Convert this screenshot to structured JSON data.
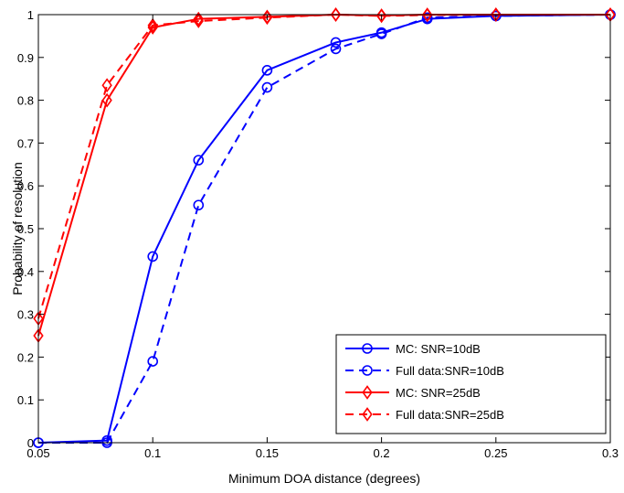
{
  "chart_data": {
    "type": "line",
    "xlabel": "Minimum DOA distance (degrees)",
    "ylabel": "Probability of resolution",
    "xlim": [
      0.05,
      0.3
    ],
    "ylim": [
      0,
      1
    ],
    "xticks": [
      "0.05",
      "0.1",
      "0.15",
      "0.2",
      "0.25",
      "0.3"
    ],
    "yticks": [
      "0",
      "0.1",
      "0.2",
      "0.3",
      "0.4",
      "0.5",
      "0.6",
      "0.7",
      "0.8",
      "0.9",
      "1"
    ],
    "grid": false,
    "legend_position": "bottom-right",
    "series": [
      {
        "name": "MC: SNR=10dB",
        "color": "#0000ff",
        "line_style": "solid",
        "marker": "circle",
        "x": [
          0.05,
          0.08,
          0.1,
          0.12,
          0.15,
          0.18,
          0.2,
          0.22,
          0.25,
          0.3
        ],
        "y": [
          0,
          0.005,
          0.435,
          0.66,
          0.87,
          0.935,
          0.958,
          0.99,
          0.997,
          1
        ]
      },
      {
        "name": "Full data:SNR=10dB",
        "color": "#0000ff",
        "line_style": "dashed",
        "marker": "circle",
        "x": [
          0.05,
          0.08,
          0.1,
          0.12,
          0.15,
          0.18,
          0.2,
          0.22,
          0.25,
          0.3
        ],
        "y": [
          0,
          0,
          0.19,
          0.555,
          0.83,
          0.92,
          0.955,
          0.993,
          0.997,
          1
        ]
      },
      {
        "name": "MC: SNR=25dB",
        "color": "#ff0000",
        "line_style": "solid",
        "marker": "diamond",
        "x": [
          0.05,
          0.08,
          0.1,
          0.12,
          0.15,
          0.18,
          0.2,
          0.22,
          0.25,
          0.3
        ],
        "y": [
          0.25,
          0.8,
          0.97,
          0.99,
          0.995,
          1,
          0.998,
          1,
          1,
          1
        ]
      },
      {
        "name": "Full data:SNR=25dB",
        "color": "#ff0000",
        "line_style": "dashed",
        "marker": "diamond",
        "x": [
          0.05,
          0.08,
          0.1,
          0.12,
          0.15,
          0.18,
          0.2,
          0.22,
          0.25,
          0.3
        ],
        "y": [
          0.29,
          0.835,
          0.975,
          0.985,
          0.993,
          1,
          0.997,
          0.999,
          1,
          1
        ]
      }
    ]
  }
}
